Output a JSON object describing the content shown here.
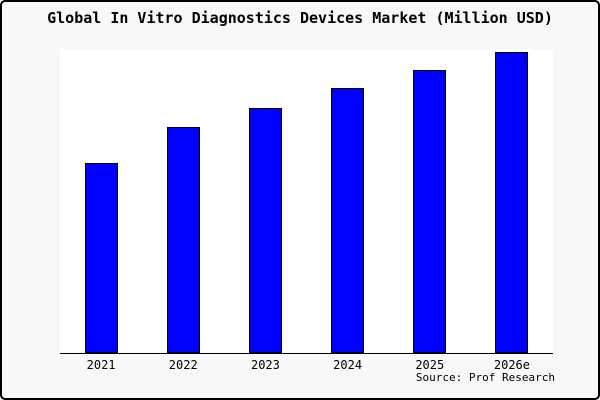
{
  "chart_data": {
    "type": "bar",
    "title": "Global In Vitro Diagnostics Devices Market (Million USD)",
    "unit": "Million USD",
    "categories": [
      "2021",
      "2022",
      "2023",
      "2024",
      "2025",
      "2026e"
    ],
    "values_relative_pct_of_max": [
      63,
      75,
      81.5,
      88,
      94,
      100
    ],
    "values_note": "no y-axis scale or data labels shown in image; values are relative bar heights as percent of tallest bar (2026e)",
    "xlabel": "",
    "ylabel": "",
    "grid": false,
    "legend": "none",
    "colors": {
      "bar_fill": "#0000ff",
      "bar_border": "#000000",
      "plot_background": "#ffffff",
      "frame_background": "#f8f8f8",
      "frame_border": "#000000"
    }
  },
  "footer": {
    "source": "Source: Prof Research"
  }
}
